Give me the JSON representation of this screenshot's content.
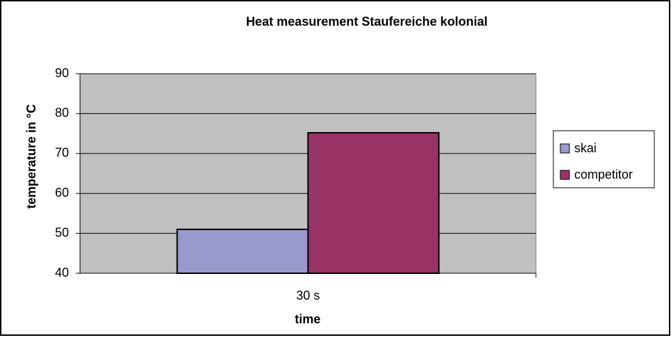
{
  "chart_data": {
    "type": "bar",
    "title": "Heat measurement Staufereiche kolonial",
    "xlabel": "time",
    "ylabel": "temperature in °C",
    "categories": [
      "30 s"
    ],
    "series": [
      {
        "name": "skai",
        "color": "#9999cc",
        "values": [
          51
        ]
      },
      {
        "name": "competitor",
        "color": "#993366",
        "values": [
          75.2
        ]
      }
    ],
    "ylim": [
      40,
      90
    ],
    "yticks": [
      40,
      50,
      60,
      70,
      80,
      90
    ],
    "grid": true,
    "legend": "right"
  }
}
